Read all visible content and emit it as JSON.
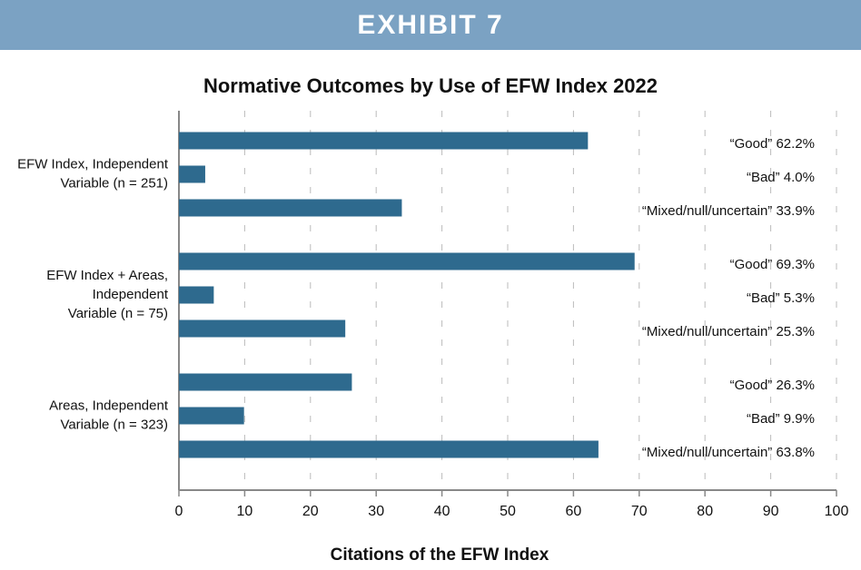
{
  "header": "EXHIBIT 7",
  "chart_data": {
    "type": "hbar",
    "title": "Normative Outcomes by Use of EFW Index 2022",
    "xlabel": "Citations of the EFW Index",
    "categories": [
      [
        "EFW Index, Independent",
        "Variable (n = 251)"
      ],
      [
        "EFW Index + Areas,",
        "Independent",
        "Variable (n = 75)"
      ],
      [
        "Areas, Independent",
        "Variable (n = 323)"
      ]
    ],
    "series": [
      {
        "color": "#2e6a8e",
        "values": [
          62.2,
          69.3,
          26.3
        ],
        "value_labels": [
          "“Good” 62.2%",
          "“Good” 69.3%",
          "“Good” 26.3%"
        ]
      },
      {
        "color": "#2e6a8e",
        "values": [
          4.0,
          5.3,
          9.9
        ],
        "value_labels": [
          "“Bad” 4.0%",
          "“Bad” 5.3%",
          "“Bad” 9.9%"
        ]
      },
      {
        "color": "#2e6a8e",
        "values": [
          33.9,
          25.3,
          63.8
        ],
        "value_labels": [
          "“Mixed/null/uncertain” 33.9%",
          "“Mixed/null/uncertain” 25.3%",
          "“Mixed/null/uncertain” 63.8%"
        ]
      }
    ],
    "xlim": [
      0,
      100
    ],
    "xticks": [
      0,
      10,
      20,
      30,
      40,
      50,
      60,
      70,
      80,
      90,
      100
    ],
    "grid": true
  }
}
